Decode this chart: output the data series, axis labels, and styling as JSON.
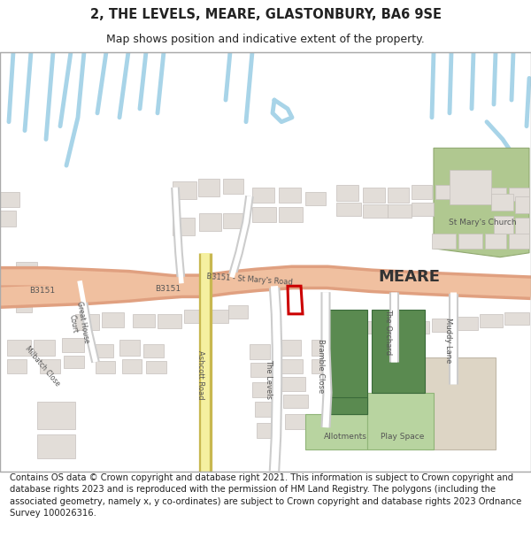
{
  "title": "2, THE LEVELS, MEARE, GLASTONBURY, BA6 9SE",
  "subtitle": "Map shows position and indicative extent of the property.",
  "footer": "Contains OS data © Crown copyright and database right 2021. This information is subject to Crown copyright and database rights 2023 and is reproduced with the permission of HM Land Registry. The polygons (including the associated geometry, namely x, y co-ordinates) are subject to Crown copyright and database rights 2023 Ordnance Survey 100026316.",
  "map_bg": "#f5f4f2",
  "road_main_color": "#f0c0a0",
  "road_main_edge": "#e0a080",
  "road_yellow_color": "#f5f0a0",
  "road_yellow_edge": "#c8b850",
  "road_white_color": "#ffffff",
  "road_white_edge": "#cccccc",
  "water_color": "#a8d4e8",
  "building_color": "#e2ddd8",
  "building_edge": "#c5c0bc",
  "green_dark": "#5a8a50",
  "green_light": "#b8d4a0",
  "green_church": "#b0c890",
  "property_color": "#cc0000",
  "text_dark": "#222222",
  "text_road": "#555555",
  "title_fontsize": 10.5,
  "subtitle_fontsize": 9,
  "footer_fontsize": 7.2,
  "map_border_color": "#aaaaaa"
}
